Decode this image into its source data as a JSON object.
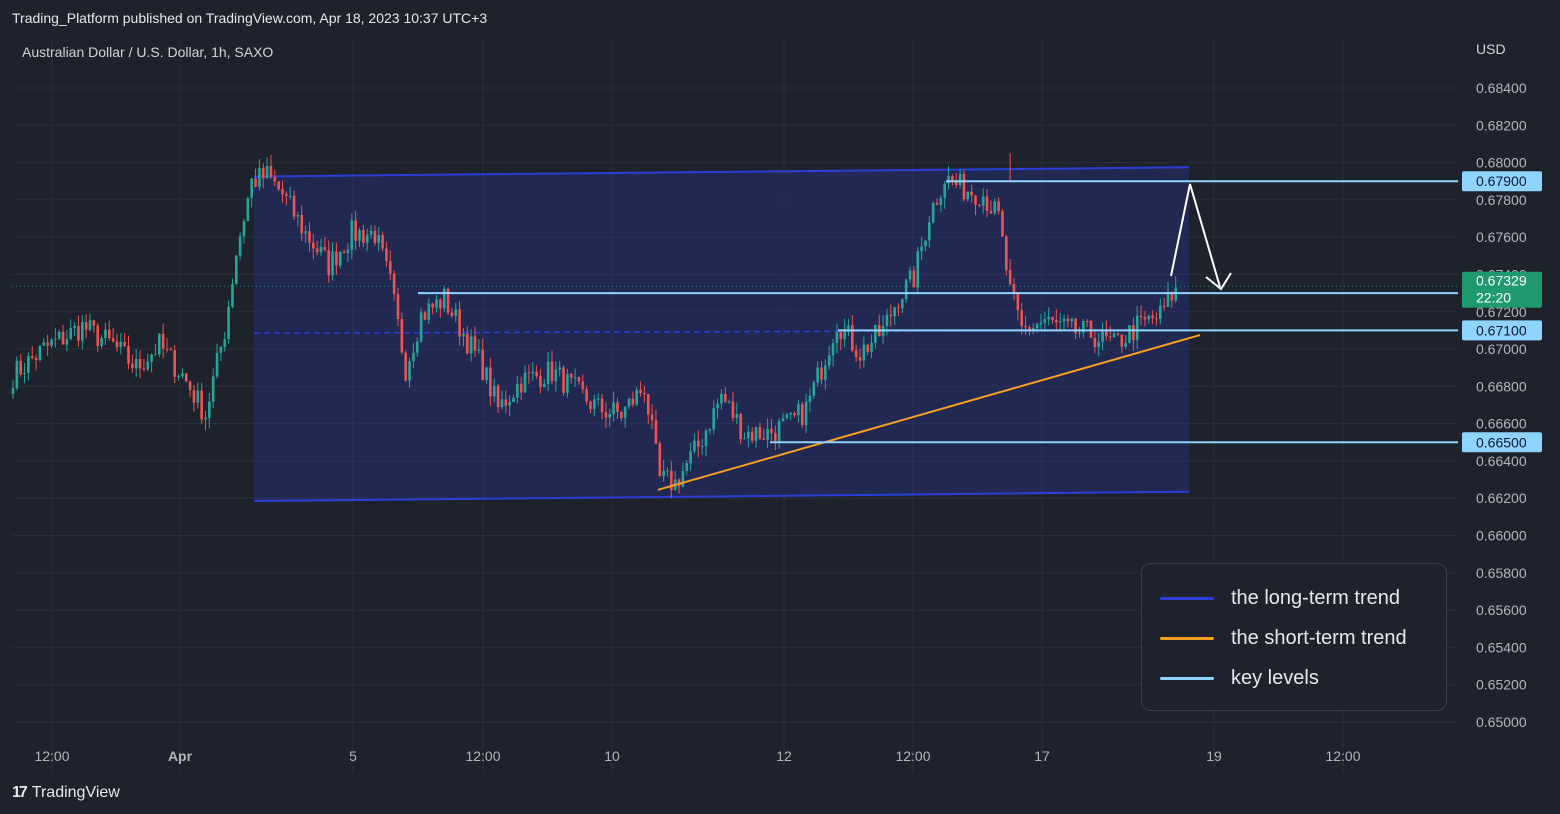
{
  "header": {
    "published_text": "Trading_Platform published on TradingView.com, Apr 18, 2023 10:37 UTC+3",
    "symbol_text": "Australian Dollar / U.S. Dollar, 1h, SAXO"
  },
  "footer": {
    "logo_text": "TradingView",
    "logo_glyph": "17"
  },
  "colors": {
    "background": "#1e222d",
    "up": "#26a69a",
    "down": "#ef5350",
    "channel": "#2a3fd6",
    "short_trend": "#f7a01f",
    "key_level": "#8fd3ff",
    "last_price_bg": "#1e9a6e"
  },
  "chart_data": {
    "type": "candlestick",
    "currency_label": "USD",
    "ylim": [
      0.6492,
      0.6852
    ],
    "y_ticks": [
      "0.68400",
      "0.68200",
      "0.68000",
      "0.67800",
      "0.67600",
      "0.67400",
      "0.67200",
      "0.67000",
      "0.66800",
      "0.66600",
      "0.66400",
      "0.66200",
      "0.66000",
      "0.65800",
      "0.65600",
      "0.65400",
      "0.65200",
      "0.65000"
    ],
    "x_ticks": [
      "12:00",
      "Apr",
      "5",
      "12:00",
      "10",
      "12",
      "12:00",
      "17",
      "19",
      "12:00"
    ],
    "close_path": [
      {
        "bar": 0,
        "price": 0.6686
      },
      {
        "bar": 8,
        "price": 0.67
      },
      {
        "bar": 18,
        "price": 0.6712
      },
      {
        "bar": 26,
        "price": 0.6702
      },
      {
        "bar": 32,
        "price": 0.669
      },
      {
        "bar": 38,
        "price": 0.6702
      },
      {
        "bar": 44,
        "price": 0.6686
      },
      {
        "bar": 50,
        "price": 0.6665
      },
      {
        "bar": 55,
        "price": 0.671
      },
      {
        "bar": 58,
        "price": 0.6752
      },
      {
        "bar": 62,
        "price": 0.679
      },
      {
        "bar": 66,
        "price": 0.6793
      },
      {
        "bar": 70,
        "price": 0.6783
      },
      {
        "bar": 76,
        "price": 0.6762
      },
      {
        "bar": 82,
        "price": 0.6745
      },
      {
        "bar": 88,
        "price": 0.6762
      },
      {
        "bar": 94,
        "price": 0.6762
      },
      {
        "bar": 98,
        "price": 0.6735
      },
      {
        "bar": 102,
        "price": 0.669
      },
      {
        "bar": 106,
        "price": 0.6718
      },
      {
        "bar": 112,
        "price": 0.6727
      },
      {
        "bar": 116,
        "price": 0.6712
      },
      {
        "bar": 122,
        "price": 0.669
      },
      {
        "bar": 126,
        "price": 0.6668
      },
      {
        "bar": 132,
        "price": 0.6683
      },
      {
        "bar": 140,
        "price": 0.6688
      },
      {
        "bar": 146,
        "price": 0.6678
      },
      {
        "bar": 152,
        "price": 0.6668
      },
      {
        "bar": 158,
        "price": 0.6665
      },
      {
        "bar": 164,
        "price": 0.668
      },
      {
        "bar": 168,
        "price": 0.663
      },
      {
        "bar": 172,
        "price": 0.6628
      },
      {
        "bar": 178,
        "price": 0.6648
      },
      {
        "bar": 184,
        "price": 0.6675
      },
      {
        "bar": 190,
        "price": 0.6655
      },
      {
        "bar": 196,
        "price": 0.6655
      },
      {
        "bar": 202,
        "price": 0.666
      },
      {
        "bar": 206,
        "price": 0.6668
      },
      {
        "bar": 210,
        "price": 0.669
      },
      {
        "bar": 214,
        "price": 0.6715
      },
      {
        "bar": 220,
        "price": 0.6698
      },
      {
        "bar": 226,
        "price": 0.671
      },
      {
        "bar": 230,
        "price": 0.6728
      },
      {
        "bar": 234,
        "price": 0.6738
      },
      {
        "bar": 238,
        "price": 0.6772
      },
      {
        "bar": 242,
        "price": 0.6792
      },
      {
        "bar": 246,
        "price": 0.6787
      },
      {
        "bar": 252,
        "price": 0.6783
      },
      {
        "bar": 256,
        "price": 0.677
      },
      {
        "bar": 259,
        "price": 0.673
      },
      {
        "bar": 262,
        "price": 0.671
      },
      {
        "bar": 268,
        "price": 0.6715
      },
      {
        "bar": 274,
        "price": 0.671
      },
      {
        "bar": 280,
        "price": 0.6708
      },
      {
        "bar": 286,
        "price": 0.6702
      },
      {
        "bar": 292,
        "price": 0.6712
      },
      {
        "bar": 298,
        "price": 0.6718
      },
      {
        "bar": 302,
        "price": 0.6733
      }
    ],
    "bar_count": 303,
    "channel": {
      "upper": {
        "start": {
          "bar": 62,
          "price": 0.67925
        },
        "end": {
          "bar": 302,
          "price": 0.67975
        }
      },
      "lower": {
        "start": {
          "bar": 62,
          "price": 0.66185
        },
        "end": {
          "bar": 302,
          "price": 0.66235
        }
      },
      "midline_price": 0.67085
    },
    "short_term_trend": {
      "start": {
        "bar": 166,
        "price": 0.66245
      },
      "end": {
        "bar": 305,
        "price": 0.67075
      }
    },
    "key_levels": [
      {
        "price": 0.679,
        "label": "0.67900",
        "start_bar": 242
      },
      {
        "price": 0.673,
        "label": "0.67300",
        "start_bar": 102
      },
      {
        "price": 0.671,
        "label": "0.67100",
        "start_bar": 214
      },
      {
        "price": 0.665,
        "label": "0.66500",
        "start_bar": 192
      }
    ],
    "last_price": {
      "price": 0.67329,
      "label": "0.67329",
      "countdown": "22:20"
    },
    "projection_arrow": [
      {
        "bar": 301,
        "price": 0.6738
      },
      {
        "bar": 306,
        "price": 0.679
      },
      {
        "bar": 312,
        "price": 0.6731
      }
    ],
    "legend": [
      {
        "name": "the long-term trend",
        "color": "#2a3fd6"
      },
      {
        "name": "the short-term trend",
        "color": "#f7a01f"
      },
      {
        "name": "key levels",
        "color": "#8fd3ff"
      }
    ]
  }
}
